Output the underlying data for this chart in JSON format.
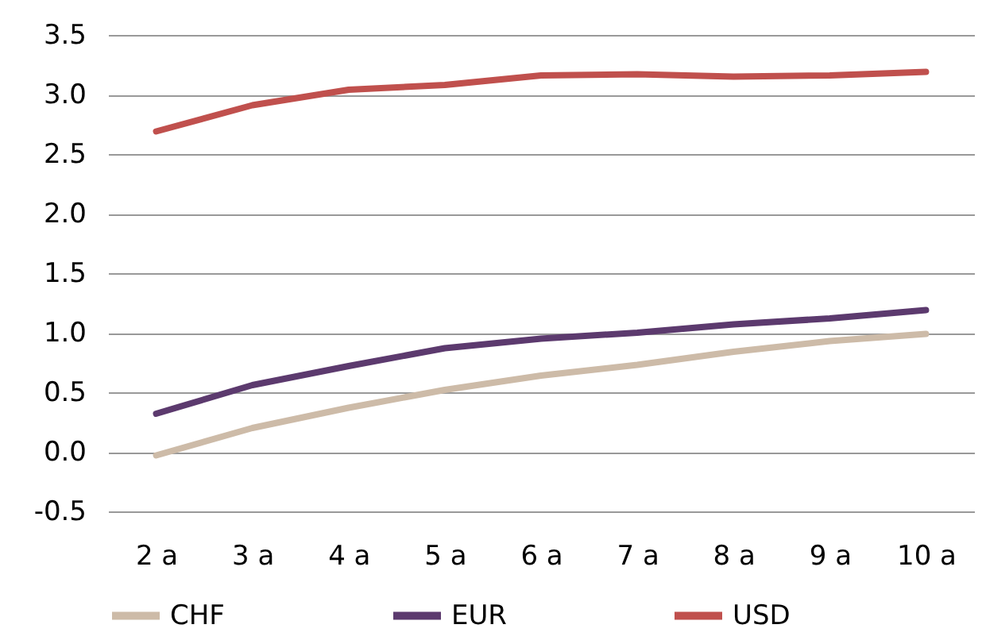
{
  "chart_data": {
    "type": "line",
    "categories": [
      "2 a",
      "3 a",
      "4 a",
      "5 a",
      "6 a",
      "7 a",
      "8 a",
      "9 a",
      "10 a"
    ],
    "series": [
      {
        "name": "CHF",
        "color": "#cdbba8",
        "values": [
          -0.03,
          0.2,
          0.37,
          0.52,
          0.64,
          0.73,
          0.84,
          0.93,
          0.99
        ]
      },
      {
        "name": "EUR",
        "color": "#5c3a6e",
        "values": [
          0.32,
          0.56,
          0.72,
          0.87,
          0.95,
          1.0,
          1.07,
          1.12,
          1.19
        ]
      },
      {
        "name": "USD",
        "color": "#c0504d",
        "values": [
          2.69,
          2.91,
          3.04,
          3.08,
          3.16,
          3.17,
          3.15,
          3.16,
          3.19
        ]
      }
    ],
    "ylim": [
      -0.5,
      3.5
    ],
    "yticks": [
      {
        "value": -0.5,
        "label": "-0.5"
      },
      {
        "value": 0,
        "label": "0.0"
      },
      {
        "value": 0.5,
        "label": "0.5"
      },
      {
        "value": 1,
        "label": "1.0"
      },
      {
        "value": 1.5,
        "label": "1.5"
      },
      {
        "value": 2,
        "label": "2.0"
      },
      {
        "value": 2.5,
        "label": "2.5"
      },
      {
        "value": 3,
        "label": "3.0"
      },
      {
        "value": 3.5,
        "label": "3.5"
      }
    ],
    "grid": "y",
    "legend": "bottom",
    "marker": "none",
    "line_style": "solid"
  }
}
